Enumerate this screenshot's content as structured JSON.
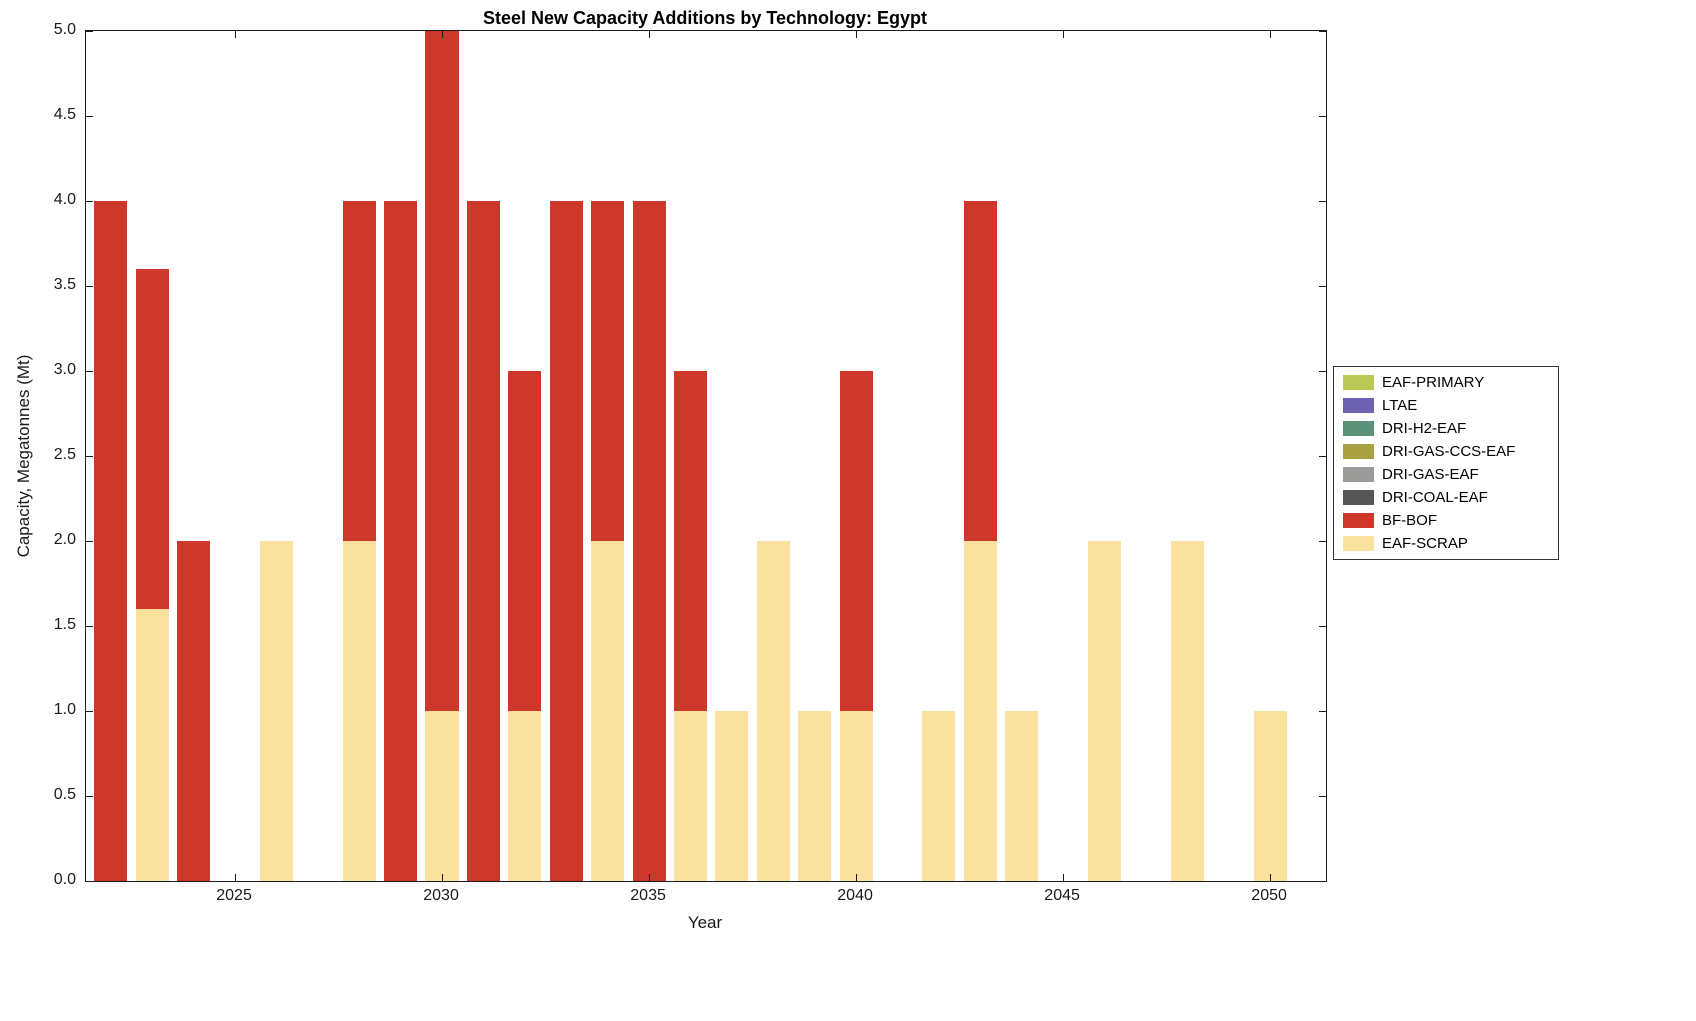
{
  "chart_data": {
    "type": "bar",
    "stacked": true,
    "title": "Steel New Capacity Additions by Technology: Egypt",
    "xlabel": "Year",
    "ylabel": "Capacity, Megatonnes (Mt)",
    "xlim": [
      2021.4,
      2051.35
    ],
    "ylim": [
      0,
      5
    ],
    "bar_width": 0.8,
    "grid": false,
    "xticks": {
      "values": [
        2025,
        2030,
        2035,
        2040,
        2045,
        2050
      ],
      "labels": [
        "2025",
        "2030",
        "2035",
        "2040",
        "2045",
        "2050"
      ]
    },
    "yticks": {
      "values": [
        0,
        0.5,
        1,
        1.5,
        2,
        2.5,
        3,
        3.5,
        4,
        4.5,
        5
      ],
      "labels": [
        "0.0",
        "0.5",
        "1.0",
        "1.5",
        "2.0",
        "2.5",
        "3.0",
        "3.5",
        "4.0",
        "4.5",
        "5.0"
      ]
    },
    "categories": [
      2022,
      2023,
      2024,
      2025,
      2026,
      2027,
      2028,
      2029,
      2030,
      2031,
      2032,
      2033,
      2034,
      2035,
      2036,
      2037,
      2038,
      2039,
      2040,
      2041,
      2042,
      2043,
      2044,
      2045,
      2046,
      2047,
      2048,
      2049,
      2050
    ],
    "series": [
      {
        "name": "EAF-SCRAP",
        "color": "#FAE19E",
        "values": [
          0,
          1.6,
          0,
          0,
          2,
          0,
          2,
          0,
          1,
          0,
          1,
          0,
          2,
          0,
          1,
          1,
          2,
          1,
          1,
          0,
          1,
          2,
          1,
          0,
          2,
          0,
          2,
          0,
          1
        ]
      },
      {
        "name": "BF-BOF",
        "color": "#CE372B",
        "values": [
          4,
          2,
          2,
          0,
          0,
          0,
          2,
          4,
          4,
          4,
          2,
          4,
          2,
          4,
          2,
          0,
          0,
          0,
          2,
          0,
          0,
          2,
          0,
          0,
          0,
          0,
          0,
          0,
          0
        ]
      }
    ],
    "legend": {
      "position": "right-outside",
      "entries": [
        {
          "label": "EAF-PRIMARY",
          "color": "#BACA55"
        },
        {
          "label": "LTAE",
          "color": "#6E62B3"
        },
        {
          "label": "DRI-H2-EAF",
          "color": "#5B9279"
        },
        {
          "label": "DRI-GAS-CCS-EAF",
          "color": "#A9A243"
        },
        {
          "label": "DRI-GAS-EAF",
          "color": "#9B9B99"
        },
        {
          "label": "DRI-COAL-EAF",
          "color": "#565656"
        },
        {
          "label": "BF-BOF",
          "color": "#CE372B"
        },
        {
          "label": "EAF-SCRAP",
          "color": "#FAE19E"
        }
      ]
    }
  }
}
